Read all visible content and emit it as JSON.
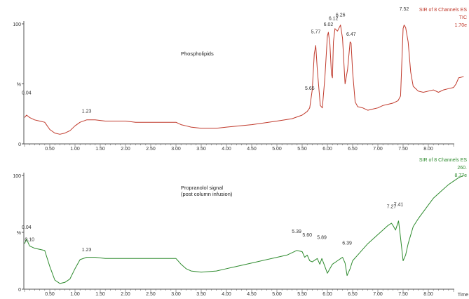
{
  "charts": [
    {
      "id": "top",
      "header": [
        "SIR of 8 Channels ES",
        "TIC",
        "1.70e"
      ],
      "color": "#c0392b",
      "annotation": [
        "Phospholipids"
      ],
      "y_ticks": [
        "100",
        "%",
        "0"
      ],
      "x_ticks": [
        "0.50",
        "1.00",
        "1.50",
        "2.00",
        "2.50",
        "3.00",
        "3.50",
        "4.00",
        "4.50",
        "5.00",
        "5.50",
        "6.00",
        "6.50",
        "7.00",
        "7.50",
        "8.00"
      ],
      "x_label": "",
      "peak_labels": [
        {
          "text": "0.04",
          "x": 0.04,
          "y": 40
        },
        {
          "text": "1.23",
          "x": 1.23,
          "y": 25
        },
        {
          "text": "5.65",
          "x": 5.65,
          "y": 44
        },
        {
          "text": "5.77",
          "x": 5.77,
          "y": 91
        },
        {
          "text": "6.02",
          "x": 6.02,
          "y": 97
        },
        {
          "text": "6.12",
          "x": 6.12,
          "y": 102
        },
        {
          "text": "6.26",
          "x": 6.26,
          "y": 105
        },
        {
          "text": "6.47",
          "x": 6.47,
          "y": 89
        },
        {
          "text": "7.52",
          "x": 7.52,
          "y": 110
        }
      ]
    },
    {
      "id": "bottom",
      "header": [
        "SIR of 8 Channels ES",
        "260.",
        "8.77e"
      ],
      "color": "#2e8b2e",
      "annotation": [
        "Propranolol signal",
        "(post column infusion)"
      ],
      "y_ticks": [
        "100",
        "%",
        "0"
      ],
      "x_ticks": [
        "0.50",
        "1.00",
        "1.50",
        "2.00",
        "2.50",
        "3.00",
        "3.50",
        "4.00",
        "4.50",
        "5.00",
        "5.50",
        "6.00",
        "6.50",
        "7.00",
        "7.50",
        "8.00"
      ],
      "x_label": "Time",
      "peak_labels": [
        {
          "text": "0.04",
          "x": 0.04,
          "y": 52
        },
        {
          "text": "0.10",
          "x": 0.1,
          "y": 41
        },
        {
          "text": "1.23",
          "x": 1.23,
          "y": 32
        },
        {
          "text": "5.39",
          "x": 5.39,
          "y": 48
        },
        {
          "text": "5.60",
          "x": 5.6,
          "y": 45
        },
        {
          "text": "5.89",
          "x": 5.89,
          "y": 43
        },
        {
          "text": "6.39",
          "x": 6.39,
          "y": 38
        },
        {
          "text": "7.27",
          "x": 7.27,
          "y": 70
        },
        {
          "text": "7.41",
          "x": 7.41,
          "y": 72
        }
      ]
    }
  ],
  "chart_data": [
    {
      "type": "line",
      "title": "",
      "xlabel": "",
      "ylabel": "%",
      "xlim": [
        0,
        8.7
      ],
      "ylim": [
        0,
        100
      ],
      "series": [
        {
          "color": "#c0392b",
          "x": [
            0.0,
            0.04,
            0.1,
            0.2,
            0.3,
            0.4,
            0.5,
            0.6,
            0.7,
            0.8,
            0.9,
            1.0,
            1.1,
            1.23,
            1.4,
            1.6,
            1.8,
            2.0,
            2.2,
            2.4,
            2.6,
            2.8,
            3.0,
            3.1,
            3.2,
            3.3,
            3.5,
            3.8,
            4.0,
            4.5,
            5.0,
            5.3,
            5.5,
            5.6,
            5.65,
            5.7,
            5.74,
            5.77,
            5.8,
            5.86,
            5.9,
            5.95,
            6.0,
            6.02,
            6.05,
            6.08,
            6.1,
            6.12,
            6.15,
            6.2,
            6.26,
            6.3,
            6.35,
            6.4,
            6.45,
            6.47,
            6.5,
            6.55,
            6.6,
            6.7,
            6.8,
            6.9,
            7.0,
            7.1,
            7.2,
            7.3,
            7.35,
            7.4,
            7.45,
            7.5,
            7.52,
            7.55,
            7.6,
            7.65,
            7.7,
            7.8,
            7.9,
            8.0,
            8.1,
            8.2,
            8.3,
            8.4,
            8.5,
            8.55,
            8.6,
            8.7
          ],
          "y": [
            22,
            24,
            22,
            20,
            19,
            18,
            12,
            9,
            8,
            9,
            11,
            15,
            18,
            20,
            20,
            19,
            19,
            19,
            18,
            18,
            18,
            18,
            18,
            16,
            15,
            14,
            13,
            13,
            14,
            16,
            19,
            21,
            24,
            27,
            30,
            45,
            75,
            82,
            62,
            32,
            30,
            55,
            90,
            93,
            83,
            58,
            55,
            85,
            96,
            94,
            99,
            88,
            50,
            62,
            85,
            84,
            60,
            35,
            31,
            30,
            28,
            29,
            30,
            32,
            33,
            34,
            35,
            36,
            40,
            96,
            99,
            97,
            85,
            60,
            48,
            44,
            43,
            44,
            45,
            43,
            45,
            46,
            47,
            50,
            55,
            56
          ]
        }
      ]
    },
    {
      "type": "line",
      "title": "",
      "xlabel": "Time",
      "ylabel": "%",
      "xlim": [
        0,
        8.7
      ],
      "ylim": [
        0,
        100
      ],
      "series": [
        {
          "color": "#2e8b2e",
          "x": [
            0.0,
            0.04,
            0.1,
            0.2,
            0.3,
            0.4,
            0.5,
            0.6,
            0.7,
            0.8,
            0.9,
            1.0,
            1.1,
            1.23,
            1.4,
            1.6,
            1.8,
            2.0,
            2.2,
            2.4,
            2.6,
            2.8,
            3.0,
            3.1,
            3.2,
            3.3,
            3.5,
            3.8,
            4.0,
            4.3,
            4.6,
            5.0,
            5.2,
            5.39,
            5.5,
            5.55,
            5.6,
            5.65,
            5.7,
            5.8,
            5.85,
            5.89,
            5.95,
            6.0,
            6.05,
            6.1,
            6.2,
            6.3,
            6.35,
            6.39,
            6.45,
            6.5,
            6.6,
            6.7,
            6.8,
            6.9,
            7.0,
            7.1,
            7.2,
            7.27,
            7.3,
            7.35,
            7.41,
            7.45,
            7.5,
            7.55,
            7.6,
            7.7,
            7.8,
            7.9,
            8.0,
            8.1,
            8.2,
            8.3,
            8.4,
            8.5,
            8.6,
            8.7
          ],
          "y": [
            40,
            44,
            38,
            36,
            35,
            34,
            20,
            8,
            5,
            6,
            9,
            18,
            26,
            28,
            28,
            27,
            27,
            27,
            27,
            27,
            27,
            27,
            27,
            22,
            18,
            16,
            15,
            16,
            18,
            21,
            24,
            28,
            30,
            34,
            33,
            28,
            30,
            25,
            24,
            27,
            22,
            27,
            20,
            14,
            18,
            22,
            25,
            28,
            23,
            12,
            18,
            25,
            30,
            35,
            40,
            44,
            48,
            52,
            56,
            58,
            56,
            52,
            60,
            45,
            25,
            30,
            40,
            55,
            62,
            68,
            74,
            80,
            84,
            88,
            92,
            95,
            98,
            100
          ]
        }
      ]
    }
  ]
}
